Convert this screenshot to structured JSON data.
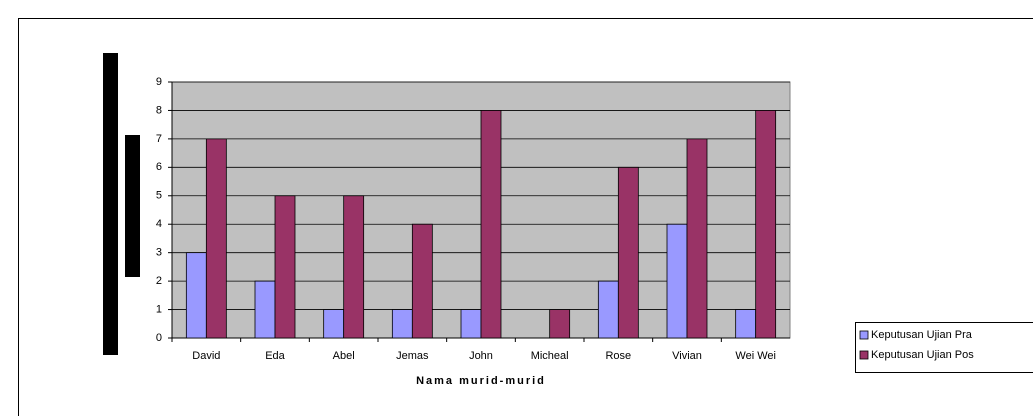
{
  "chart_data": {
    "type": "bar",
    "x_label": "Nama murid-murid",
    "categories": [
      "David",
      "Eda",
      "Abel",
      "Jemas",
      "John",
      "Micheal",
      "Rose",
      "Vivian",
      "Wei Wei"
    ],
    "series": [
      {
        "name": "Keputusan Ujian Pra",
        "color": "#9999ff",
        "values": [
          3,
          2,
          1,
          1,
          1,
          0,
          2,
          4,
          1
        ]
      },
      {
        "name": "Keputusan Ujian Pos",
        "color": "#993366",
        "values": [
          7,
          5,
          5,
          4,
          8,
          1,
          6,
          7,
          8
        ]
      }
    ],
    "ylim": [
      0,
      9
    ],
    "yticks": [
      0,
      1,
      2,
      3,
      4,
      5,
      6,
      7,
      8,
      9
    ],
    "grid": true,
    "legend": "right"
  }
}
